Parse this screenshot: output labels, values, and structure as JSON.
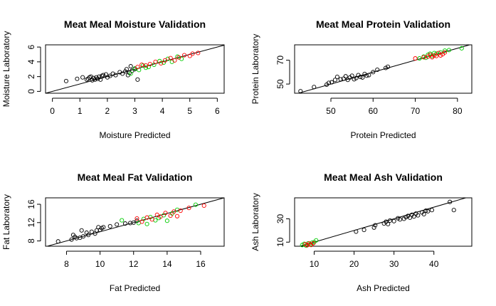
{
  "colors": {
    "black": "#000000",
    "red": "#ff0000",
    "green": "#00cc00",
    "line": "#000000"
  },
  "chart_data": [
    {
      "type": "scatter",
      "title": "Meat Meal Moisture Validation",
      "xlabel": "Moisture Predicted",
      "ylabel": "Moisture Laboratory",
      "xlim": [
        -0.25,
        6.25
      ],
      "ylim": [
        -0.25,
        6.3
      ],
      "xticks": [
        0,
        1,
        2,
        3,
        4,
        5,
        6
      ],
      "yticks": [
        0,
        2,
        4,
        6
      ],
      "reference_line": "y = x",
      "series": [
        {
          "color": "black",
          "points": [
            [
              0.5,
              1.4
            ],
            [
              0.9,
              1.7
            ],
            [
              1.1,
              1.9
            ],
            [
              1.25,
              1.6
            ],
            [
              1.3,
              1.7
            ],
            [
              1.35,
              1.9
            ],
            [
              1.4,
              2.0
            ],
            [
              1.45,
              1.5
            ],
            [
              1.5,
              1.8
            ],
            [
              1.55,
              1.6
            ],
            [
              1.6,
              1.9
            ],
            [
              1.65,
              1.7
            ],
            [
              1.7,
              2.0
            ],
            [
              1.75,
              1.6
            ],
            [
              1.8,
              2.1
            ],
            [
              1.85,
              2.2
            ],
            [
              1.95,
              2.3
            ],
            [
              2.0,
              1.9
            ],
            [
              2.1,
              2.1
            ],
            [
              2.2,
              2.4
            ],
            [
              2.3,
              2.2
            ],
            [
              2.45,
              2.6
            ],
            [
              2.55,
              2.4
            ],
            [
              2.65,
              2.7
            ],
            [
              2.7,
              3.0
            ],
            [
              2.75,
              2.2
            ],
            [
              2.8,
              2.5
            ],
            [
              2.85,
              3.4
            ],
            [
              2.9,
              2.8
            ],
            [
              3.0,
              3.0
            ],
            [
              3.1,
              1.6
            ]
          ]
        },
        {
          "color": "green",
          "points": [
            [
              2.85,
              2.4
            ],
            [
              3.0,
              3.1
            ],
            [
              3.15,
              2.9
            ],
            [
              3.3,
              3.5
            ],
            [
              3.4,
              3.2
            ],
            [
              3.5,
              3.3
            ],
            [
              3.7,
              3.6
            ],
            [
              3.9,
              4.1
            ],
            [
              4.05,
              3.9
            ],
            [
              4.2,
              4.4
            ],
            [
              4.35,
              4.0
            ],
            [
              4.55,
              4.7
            ],
            [
              4.7,
              4.4
            ]
          ]
        },
        {
          "color": "red",
          "points": [
            [
              3.1,
              3.3
            ],
            [
              3.25,
              3.6
            ],
            [
              3.4,
              3.5
            ],
            [
              3.55,
              3.7
            ],
            [
              3.75,
              4.0
            ],
            [
              3.95,
              3.8
            ],
            [
              4.1,
              4.2
            ],
            [
              4.3,
              4.5
            ],
            [
              4.45,
              4.2
            ],
            [
              4.6,
              4.6
            ],
            [
              4.8,
              4.9
            ],
            [
              5.0,
              4.8
            ],
            [
              5.1,
              5.1
            ],
            [
              5.3,
              5.2
            ]
          ]
        }
      ]
    },
    {
      "type": "scatter",
      "title": "Meat Meal Protein Validation",
      "xlabel": "Protein Predicted",
      "ylabel": "Protein Laboratory",
      "xlim": [
        41.4,
        83.4
      ],
      "ylim": [
        42.3,
        82.9
      ],
      "xticks": [
        50,
        60,
        70,
        80
      ],
      "yticks": [
        50,
        70
      ],
      "reference_line": "y = x",
      "series": [
        {
          "color": "black",
          "points": [
            [
              42.8,
              44.0
            ],
            [
              46.0,
              47.5
            ],
            [
              49.0,
              49.5
            ],
            [
              49.5,
              51.0
            ],
            [
              50.2,
              51.5
            ],
            [
              51.0,
              53.5
            ],
            [
              51.5,
              56.0
            ],
            [
              52.3,
              54.0
            ],
            [
              53.0,
              54.5
            ],
            [
              53.5,
              56.5
            ],
            [
              54.0,
              53.5
            ],
            [
              54.5,
              55.5
            ],
            [
              55.0,
              57.0
            ],
            [
              55.5,
              54.0
            ],
            [
              56.0,
              55.0
            ],
            [
              56.5,
              57.5
            ],
            [
              57.0,
              56.0
            ],
            [
              57.5,
              55.5
            ],
            [
              58.0,
              58.5
            ],
            [
              58.5,
              57.0
            ],
            [
              59.0,
              57.5
            ],
            [
              60.0,
              60.0
            ],
            [
              61.0,
              62.0
            ],
            [
              63.0,
              63.5
            ],
            [
              63.5,
              64.5
            ]
          ]
        },
        {
          "color": "green",
          "points": [
            [
              71.0,
              71.5
            ],
            [
              72.0,
              73.0
            ],
            [
              72.5,
              72.0
            ],
            [
              73.0,
              74.5
            ],
            [
              73.5,
              75.5
            ],
            [
              74.0,
              73.5
            ],
            [
              74.5,
              76.0
            ],
            [
              75.0,
              75.5
            ],
            [
              76.0,
              76.5
            ],
            [
              77.0,
              78.0
            ],
            [
              78.0,
              78.5
            ],
            [
              81.0,
              80.0
            ]
          ]
        },
        {
          "color": "red",
          "points": [
            [
              70.0,
              71.5
            ],
            [
              72.0,
              72.5
            ],
            [
              73.0,
              73.0
            ],
            [
              73.5,
              74.5
            ],
            [
              74.0,
              72.5
            ],
            [
              74.5,
              74.0
            ],
            [
              75.0,
              73.5
            ],
            [
              75.5,
              76.0
            ],
            [
              76.0,
              74.0
            ],
            [
              76.5,
              75.0
            ],
            [
              77.0,
              76.5
            ]
          ]
        }
      ]
    },
    {
      "type": "scatter",
      "title": "Meat Meal Fat Validation",
      "xlabel": "Fat Predicted",
      "ylabel": "Fat Laboratory",
      "xlim": [
        6.75,
        17.4
      ],
      "ylim": [
        6.85,
        17.4
      ],
      "xticks": [
        8,
        10,
        12,
        14,
        16
      ],
      "yticks": [
        8,
        12,
        16
      ],
      "reference_line": "y = x",
      "series": [
        {
          "color": "black",
          "points": [
            [
              7.5,
              7.9
            ],
            [
              8.3,
              8.3
            ],
            [
              8.4,
              9.3
            ],
            [
              8.5,
              8.9
            ],
            [
              8.6,
              8.6
            ],
            [
              8.8,
              8.7
            ],
            [
              8.9,
              10.3
            ],
            [
              9.0,
              9.0
            ],
            [
              9.2,
              9.8
            ],
            [
              9.3,
              9.3
            ],
            [
              9.5,
              10.0
            ],
            [
              9.7,
              9.6
            ],
            [
              9.8,
              10.3
            ],
            [
              9.9,
              11.0
            ],
            [
              10.0,
              10.4
            ],
            [
              10.1,
              10.8
            ],
            [
              10.2,
              11.0
            ],
            [
              10.6,
              11.2
            ],
            [
              11.0,
              11.6
            ],
            [
              11.5,
              11.8
            ],
            [
              11.8,
              11.9
            ],
            [
              12.0,
              12.0
            ],
            [
              12.2,
              12.4
            ]
          ]
        },
        {
          "color": "green",
          "points": [
            [
              11.3,
              12.5
            ],
            [
              12.3,
              11.9
            ],
            [
              12.6,
              12.8
            ],
            [
              12.8,
              11.7
            ],
            [
              13.0,
              13.2
            ],
            [
              13.3,
              12.5
            ],
            [
              13.5,
              13.0
            ],
            [
              13.8,
              13.6
            ],
            [
              14.0,
              12.4
            ],
            [
              14.3,
              14.0
            ],
            [
              14.6,
              14.8
            ],
            [
              15.7,
              15.9
            ]
          ]
        },
        {
          "color": "red",
          "points": [
            [
              12.2,
              12.9
            ],
            [
              12.5,
              12.2
            ],
            [
              12.8,
              13.1
            ],
            [
              13.1,
              12.7
            ],
            [
              13.4,
              13.7
            ],
            [
              13.6,
              13.3
            ],
            [
              13.9,
              14.1
            ],
            [
              14.2,
              13.5
            ],
            [
              14.4,
              14.4
            ],
            [
              14.6,
              13.4
            ],
            [
              14.8,
              14.6
            ],
            [
              15.3,
              15.2
            ],
            [
              16.2,
              15.7
            ]
          ]
        }
      ]
    },
    {
      "type": "scatter",
      "title": "Meat Meal Ash Validation",
      "xlabel": "Ash Predicted",
      "ylabel": "Ash Laboratory",
      "xlim": [
        5.1,
        49.5
      ],
      "ylim": [
        6.5,
        48.0
      ],
      "xticks": [
        10,
        20,
        30,
        40
      ],
      "yticks": [
        10,
        30
      ],
      "reference_line": "y = x",
      "series": [
        {
          "color": "black",
          "points": [
            [
              20.5,
              19.0
            ],
            [
              22.5,
              20.5
            ],
            [
              25.0,
              22.5
            ],
            [
              25.3,
              24.5
            ],
            [
              27.5,
              26.0
            ],
            [
              28.0,
              27.5
            ],
            [
              28.5,
              25.5
            ],
            [
              29.0,
              28.5
            ],
            [
              30.0,
              28.0
            ],
            [
              31.0,
              30.5
            ],
            [
              31.5,
              29.5
            ],
            [
              32.5,
              30.0
            ],
            [
              33.0,
              31.5
            ],
            [
              33.5,
              32.5
            ],
            [
              34.0,
              31.0
            ],
            [
              34.5,
              33.5
            ],
            [
              35.0,
              32.0
            ],
            [
              35.5,
              34.5
            ],
            [
              36.0,
              33.0
            ],
            [
              37.0,
              35.5
            ],
            [
              37.5,
              34.0
            ],
            [
              38.0,
              37.0
            ],
            [
              38.5,
              36.5
            ],
            [
              39.5,
              37.5
            ],
            [
              44.0,
              44.5
            ],
            [
              45.0,
              37.5
            ]
          ]
        },
        {
          "color": "green",
          "points": [
            [
              7.0,
              7.5
            ],
            [
              7.5,
              8.5
            ],
            [
              8.0,
              7.0
            ],
            [
              8.5,
              9.0
            ],
            [
              9.0,
              8.0
            ],
            [
              9.5,
              9.5
            ],
            [
              10.0,
              10.0
            ],
            [
              10.5,
              11.5
            ]
          ]
        },
        {
          "color": "red",
          "points": [
            [
              7.8,
              8.2
            ],
            [
              8.3,
              7.4
            ],
            [
              8.8,
              8.8
            ],
            [
              9.2,
              7.6
            ],
            [
              9.8,
              9.0
            ]
          ]
        }
      ]
    }
  ]
}
